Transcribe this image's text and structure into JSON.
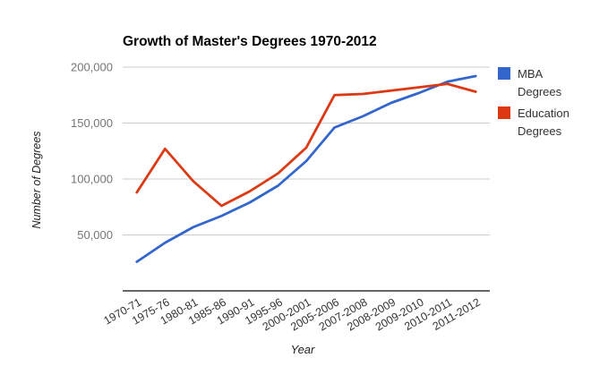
{
  "chart_data": {
    "type": "line",
    "title": "Growth of Master's Degrees 1970-2012",
    "xlabel": "Year",
    "ylabel": "Number of Degrees",
    "categories": [
      "1970-71",
      "1975-76",
      "1980-81",
      "1985-86",
      "1990-91",
      "1995-96",
      "2000-2001",
      "2005-2006",
      "2007-2008",
      "2008-2009",
      "2009-2010",
      "2010-2011",
      "2011-2012"
    ],
    "series": [
      {
        "name": "MBA Degrees",
        "color": "#3366cc",
        "values": [
          26000,
          43000,
          57000,
          67000,
          79000,
          94000,
          116000,
          146000,
          156000,
          168000,
          177000,
          187000,
          192000
        ]
      },
      {
        "name": "Education Degrees",
        "color": "#dc3912",
        "values": [
          88000,
          127000,
          98000,
          76000,
          89000,
          105000,
          128000,
          175000,
          176000,
          179000,
          182000,
          185000,
          178000
        ]
      }
    ],
    "ylim": [
      0,
      200000
    ],
    "yticks": [
      {
        "value": 50000,
        "label": "50,000"
      },
      {
        "value": 100000,
        "label": "100,000"
      },
      {
        "value": 150000,
        "label": "150,000"
      },
      {
        "value": 200000,
        "label": "200,000"
      }
    ],
    "grid": true,
    "legend_position": "right",
    "grid_color": "#cccccc",
    "axis_color": "#333333",
    "ytick_label_color": "#757575",
    "xtick_label_color": "#333333"
  }
}
